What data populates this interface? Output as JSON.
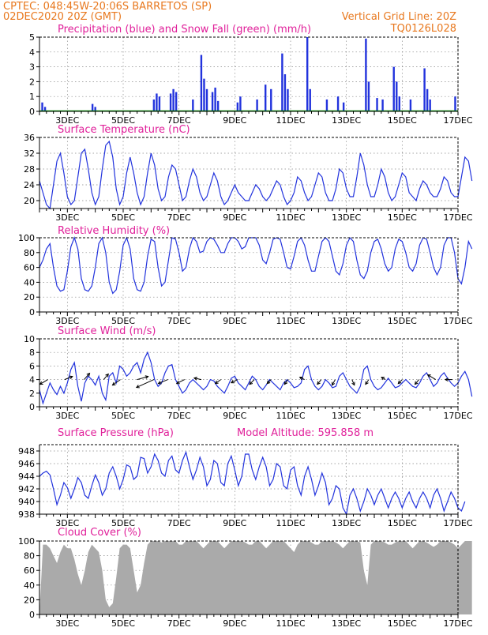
{
  "header": {
    "line1": "CPTEC:   048:45W-20:06S   BARRETOS (SP)",
    "line2": "02DEC2020 20Z (GMT)",
    "grid_note": "Vertical Grid Line: 20Z",
    "code": "TQ0126L028"
  },
  "colors": {
    "header": "#e8781e",
    "title": "#e0209a",
    "series": "#2233dd",
    "snow": "#00a000",
    "cloud": "#aaaaaa"
  },
  "x_axis": {
    "start_day": 2,
    "end_day": 17,
    "tick_days": [
      3,
      5,
      7,
      9,
      11,
      13,
      15,
      17
    ],
    "tick_labels": [
      "3DEC",
      "5DEC",
      "7DEC",
      "9DEC",
      "11DEC",
      "13DEC",
      "15DEC",
      "17DEC"
    ]
  },
  "chart_data": [
    {
      "id": "precip",
      "type": "bar",
      "title": "Precipitation (blue) and Snow Fall (green) (mm/h)",
      "ylim": [
        0,
        5
      ],
      "yticks": [
        0,
        1,
        2,
        3,
        4,
        5
      ],
      "x_unit": "day of December 2020",
      "series": [
        {
          "name": "Precipitation",
          "points": [
            [
              2.1,
              0.6
            ],
            [
              2.2,
              0.3
            ],
            [
              3.9,
              0.5
            ],
            [
              4.0,
              0.3
            ],
            [
              6.1,
              0.8
            ],
            [
              6.2,
              1.2
            ],
            [
              6.3,
              1.0
            ],
            [
              6.7,
              1.2
            ],
            [
              6.8,
              1.5
            ],
            [
              6.9,
              1.3
            ],
            [
              7.5,
              0.8
            ],
            [
              7.8,
              3.8
            ],
            [
              7.9,
              2.2
            ],
            [
              8.0,
              1.5
            ],
            [
              8.2,
              1.3
            ],
            [
              8.3,
              1.6
            ],
            [
              8.4,
              0.7
            ],
            [
              9.1,
              0.6
            ],
            [
              9.2,
              1.0
            ],
            [
              9.8,
              0.8
            ],
            [
              10.1,
              1.8
            ],
            [
              10.3,
              1.5
            ],
            [
              10.7,
              3.9
            ],
            [
              10.8,
              2.5
            ],
            [
              10.9,
              1.5
            ],
            [
              11.6,
              5.0
            ],
            [
              11.7,
              1.5
            ],
            [
              12.3,
              0.8
            ],
            [
              12.7,
              1.0
            ],
            [
              12.9,
              0.6
            ],
            [
              13.7,
              4.9
            ],
            [
              13.8,
              2.0
            ],
            [
              14.1,
              0.9
            ],
            [
              14.3,
              0.8
            ],
            [
              14.7,
              3.0
            ],
            [
              14.8,
              2.0
            ],
            [
              14.9,
              1.0
            ],
            [
              15.3,
              0.8
            ],
            [
              15.8,
              2.9
            ],
            [
              15.9,
              1.5
            ],
            [
              16.0,
              0.8
            ],
            [
              16.9,
              1.0
            ]
          ]
        },
        {
          "name": "Snow Fall",
          "points": [
            [
              2.0,
              0.0
            ],
            [
              17.0,
              0.0
            ]
          ]
        }
      ]
    },
    {
      "id": "temp",
      "type": "line",
      "title": "Surface Temperature (nC)",
      "ylim": [
        18,
        36
      ],
      "yticks": [
        20,
        24,
        28,
        32,
        36
      ],
      "series": [
        {
          "name": "Temperature",
          "x_step_days": 0.125,
          "values": [
            25,
            22,
            19,
            18,
            24,
            30,
            32,
            27,
            21,
            19,
            20,
            26,
            32,
            33,
            28,
            22,
            19,
            21,
            28,
            34,
            35,
            31,
            23,
            19,
            21,
            27,
            31,
            27,
            22,
            19,
            21,
            27,
            32,
            29,
            23,
            20,
            21,
            26,
            29,
            28,
            24,
            20,
            21,
            25,
            28,
            26,
            22,
            20,
            21,
            24,
            27,
            25,
            21,
            19,
            20,
            22,
            24,
            22,
            21,
            20,
            20,
            22,
            24,
            23,
            21,
            20,
            21,
            23,
            25,
            24,
            21,
            19,
            20,
            22,
            26,
            25,
            22,
            20,
            21,
            24,
            27,
            26,
            22,
            20,
            20,
            23,
            28,
            27,
            23,
            21,
            21,
            26,
            32,
            29,
            24,
            21,
            21,
            24,
            28,
            26,
            22,
            20,
            21,
            24,
            27,
            26,
            22,
            21,
            20,
            23,
            25,
            24,
            22,
            21,
            21,
            23,
            26,
            25,
            22,
            21,
            21,
            26,
            31,
            30,
            25
          ]
        }
      ]
    },
    {
      "id": "rh",
      "type": "line",
      "title": "Relative Humidity (%)",
      "ylim": [
        0,
        100
      ],
      "yticks": [
        0,
        20,
        40,
        60,
        80,
        100
      ],
      "series": [
        {
          "name": "Relative Humidity",
          "x_step_days": 0.125,
          "values": [
            60,
            70,
            85,
            92,
            60,
            35,
            28,
            30,
            55,
            88,
            100,
            85,
            45,
            30,
            28,
            35,
            60,
            92,
            100,
            80,
            40,
            25,
            30,
            55,
            90,
            100,
            85,
            45,
            30,
            28,
            40,
            75,
            98,
            95,
            60,
            35,
            40,
            70,
            100,
            98,
            80,
            55,
            60,
            85,
            100,
            95,
            80,
            82,
            95,
            100,
            98,
            90,
            80,
            80,
            92,
            100,
            100,
            95,
            85,
            88,
            100,
            100,
            100,
            90,
            70,
            65,
            80,
            98,
            100,
            98,
            80,
            60,
            58,
            75,
            95,
            100,
            90,
            70,
            55,
            55,
            75,
            95,
            100,
            95,
            75,
            55,
            50,
            65,
            90,
            100,
            95,
            70,
            50,
            45,
            55,
            80,
            95,
            98,
            85,
            65,
            55,
            60,
            85,
            98,
            95,
            80,
            60,
            55,
            65,
            90,
            100,
            98,
            80,
            60,
            50,
            60,
            90,
            100,
            100,
            80,
            45,
            38,
            60,
            95,
            85
          ]
        }
      ]
    },
    {
      "id": "wind",
      "type": "line",
      "title": "Surface Wind (m/s)",
      "ylim": [
        0,
        10
      ],
      "yticks": [
        0,
        2,
        4,
        6,
        8,
        10
      ],
      "series": [
        {
          "name": "Wind speed",
          "x_step_days": 0.125,
          "values": [
            2.5,
            0.5,
            2,
            3.5,
            2.5,
            1.8,
            3,
            2,
            3.5,
            5.5,
            6.5,
            3,
            0.8,
            3.5,
            4.5,
            4,
            3.2,
            4.5,
            2,
            1,
            4.5,
            5,
            3.5,
            6,
            5.5,
            4.5,
            5,
            6,
            6.5,
            5,
            7,
            8,
            6.5,
            4,
            3,
            3.5,
            5,
            6,
            6.2,
            4,
            3,
            2,
            2.5,
            3.5,
            4,
            3.5,
            3,
            2.5,
            3,
            4,
            3.8,
            3,
            2.5,
            2,
            3,
            4.2,
            4.5,
            3.5,
            3,
            2.5,
            3.5,
            4.5,
            4,
            3,
            2.5,
            3.2,
            4,
            3.5,
            3,
            2.5,
            3.5,
            4,
            3.5,
            2.8,
            3,
            3.5,
            5.5,
            6,
            4,
            3,
            2.5,
            3,
            4,
            3.5,
            2.8,
            3,
            4.5,
            5,
            4,
            3,
            2.5,
            2,
            3,
            5.5,
            6,
            4,
            3,
            2.5,
            2.8,
            3.5,
            4.2,
            3.5,
            2.8,
            3,
            3.5,
            4,
            3.5,
            3,
            2.8,
            3.5,
            4.5,
            5,
            4,
            3,
            3.5,
            4.5,
            5,
            4.2,
            3.5,
            3,
            3.5,
            4.5,
            5.2,
            4,
            1.5
          ]
        }
      ],
      "arrows": [
        {
          "day": 2.3,
          "u": -1,
          "v": -0.6
        },
        {
          "day": 2.9,
          "u": 1,
          "v": 0.4
        },
        {
          "day": 3.6,
          "u": 0.7,
          "v": 0.8
        },
        {
          "day": 4.3,
          "u": 0.6,
          "v": 0.7
        },
        {
          "day": 4.9,
          "u": -1,
          "v": -0.7
        },
        {
          "day": 5.5,
          "u": 1.4,
          "v": 0.4
        },
        {
          "day": 6.1,
          "u": -2.2,
          "v": -1
        },
        {
          "day": 6.6,
          "u": -1.2,
          "v": -0.5
        },
        {
          "day": 7.2,
          "u": -1,
          "v": -0.5
        },
        {
          "day": 7.8,
          "u": -0.9,
          "v": 0.2
        },
        {
          "day": 8.5,
          "u": -0.7,
          "v": -0.5
        },
        {
          "day": 9.1,
          "u": -0.8,
          "v": -0.4
        },
        {
          "day": 9.7,
          "u": -0.6,
          "v": -0.6
        },
        {
          "day": 10.3,
          "u": -0.5,
          "v": -0.5
        },
        {
          "day": 10.9,
          "u": -0.4,
          "v": -0.6
        },
        {
          "day": 11.5,
          "u": -0.6,
          "v": 0.3
        },
        {
          "day": 12.1,
          "u": -0.5,
          "v": -0.6
        },
        {
          "day": 12.6,
          "u": -0.4,
          "v": -0.7
        },
        {
          "day": 13.2,
          "u": 0.3,
          "v": -0.7
        },
        {
          "day": 13.8,
          "u": -0.4,
          "v": -0.6
        },
        {
          "day": 14.4,
          "u": -0.5,
          "v": 0.3
        },
        {
          "day": 15.0,
          "u": -0.5,
          "v": -0.5
        },
        {
          "day": 15.6,
          "u": -0.5,
          "v": -0.6
        },
        {
          "day": 16.2,
          "u": -1,
          "v": 0.6
        },
        {
          "day": 16.8,
          "u": -0.9,
          "v": 0
        }
      ]
    },
    {
      "id": "pressure",
      "type": "line",
      "title": "Surface Pressure (hPa)",
      "extra_label": "Model Altitude: 595.858  m",
      "ylim": [
        938,
        949
      ],
      "yticks": [
        938,
        940,
        942,
        944,
        946,
        948
      ],
      "series": [
        {
          "name": "Surface Pressure",
          "x_step_days": 0.125,
          "values": [
            944,
            944.5,
            944.8,
            944.2,
            942,
            939.5,
            941,
            943,
            942.2,
            940.5,
            942,
            943.8,
            943,
            941,
            940.5,
            942.5,
            944.2,
            943,
            941,
            942,
            944.5,
            945.5,
            944,
            942,
            943.5,
            945.8,
            945.5,
            943.5,
            944,
            947,
            946.8,
            944.5,
            945.5,
            947.5,
            946.5,
            944.5,
            944,
            946.5,
            947.2,
            945,
            944.5,
            946.5,
            947.8,
            945.5,
            943.5,
            945,
            947,
            945.5,
            942.5,
            943.5,
            946.5,
            946,
            943,
            942.5,
            946,
            947.2,
            945,
            942.5,
            944,
            947.5,
            947.5,
            945,
            943.5,
            945.5,
            947,
            945.5,
            942.5,
            943.5,
            946,
            945.5,
            942.5,
            942,
            945,
            945.5,
            942.5,
            941,
            944,
            945.5,
            943.5,
            941,
            942.5,
            944.5,
            943,
            939.5,
            940.5,
            942.5,
            942,
            939,
            938,
            941,
            942,
            940.5,
            938.5,
            940,
            942,
            941,
            939.5,
            941,
            942,
            940.5,
            939,
            940.5,
            941.5,
            940.5,
            939,
            940.5,
            941.5,
            940,
            939,
            940.5,
            941.5,
            940.5,
            939,
            941,
            942,
            940.5,
            938.5,
            940,
            941.5,
            940.5,
            939,
            938.5,
            940
          ]
        }
      ]
    },
    {
      "id": "cloud",
      "type": "area",
      "title": "Cloud Cover (%)",
      "ylim": [
        0,
        100
      ],
      "yticks": [
        0,
        20,
        40,
        60,
        80,
        100
      ],
      "series": [
        {
          "name": "Cloud Cover",
          "x_step_days": 0.125,
          "values": [
            0,
            95,
            95,
            90,
            80,
            70,
            85,
            95,
            90,
            90,
            75,
            55,
            40,
            60,
            85,
            95,
            90,
            85,
            60,
            20,
            10,
            15,
            50,
            90,
            95,
            95,
            90,
            60,
            30,
            40,
            70,
            95,
            100,
            100,
            100,
            98,
            100,
            100,
            100,
            100,
            95,
            95,
            100,
            100,
            100,
            100,
            95,
            90,
            95,
            100,
            100,
            100,
            95,
            90,
            95,
            100,
            100,
            100,
            100,
            98,
            95,
            95,
            100,
            100,
            95,
            90,
            95,
            100,
            100,
            100,
            100,
            95,
            90,
            85,
            95,
            100,
            100,
            100,
            98,
            95,
            95,
            100,
            100,
            100,
            100,
            98,
            95,
            90,
            95,
            100,
            100,
            100,
            98,
            60,
            40,
            95,
            100,
            100,
            100,
            98,
            95,
            95,
            98,
            100,
            100,
            100,
            95,
            90,
            95,
            100,
            100,
            98,
            95,
            92,
            95,
            100,
            100,
            100,
            98,
            95,
            90,
            95,
            100,
            100,
            100
          ]
        }
      ]
    }
  ]
}
